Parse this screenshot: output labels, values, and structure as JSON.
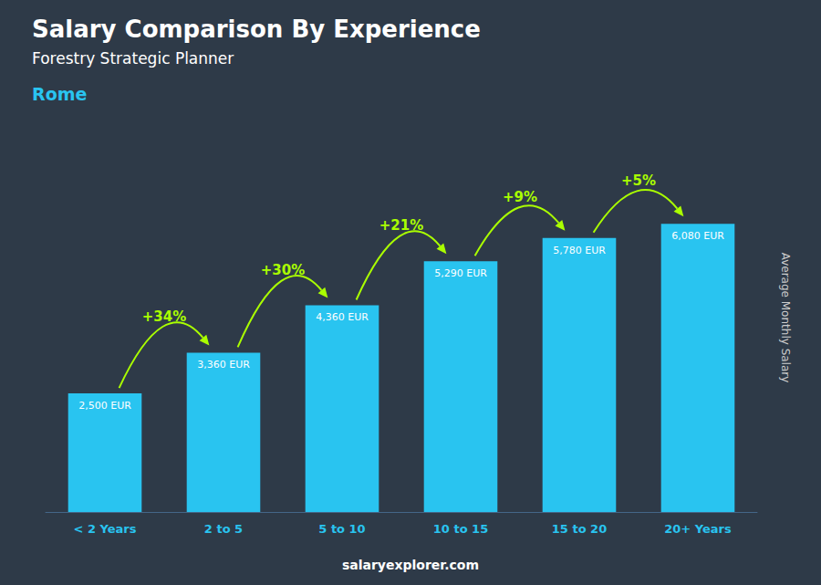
{
  "chart_data": {
    "type": "bar",
    "title": "Salary Comparison By Experience",
    "subtitle": "Forestry Strategic Planner",
    "annotations": [
      "Rome",
      "salaryexplorer.com"
    ],
    "ylabel": "Average Monthly Salary",
    "categories": [
      "< 2 Years",
      "2 to 5",
      "5 to 10",
      "10 to 15",
      "15 to 20",
      "20+ Years"
    ],
    "values": [
      2500,
      3360,
      4360,
      5290,
      5780,
      6080
    ],
    "value_labels": [
      "2,500 EUR",
      "3,360 EUR",
      "4,360 EUR",
      "5,290 EUR",
      "5,780 EUR",
      "6,080 EUR"
    ],
    "data_labels": true,
    "color": "#29c4f0",
    "changes": {
      "color": "#aaff00",
      "values": [
        34,
        30,
        21,
        9,
        5
      ],
      "value_labels": [
        "+34%",
        "+30%",
        "+21%",
        "+9%",
        "+5%"
      ]
    },
    "ylim": [
      0,
      8200
    ],
    "grid": false,
    "tick_labels": "x"
  }
}
